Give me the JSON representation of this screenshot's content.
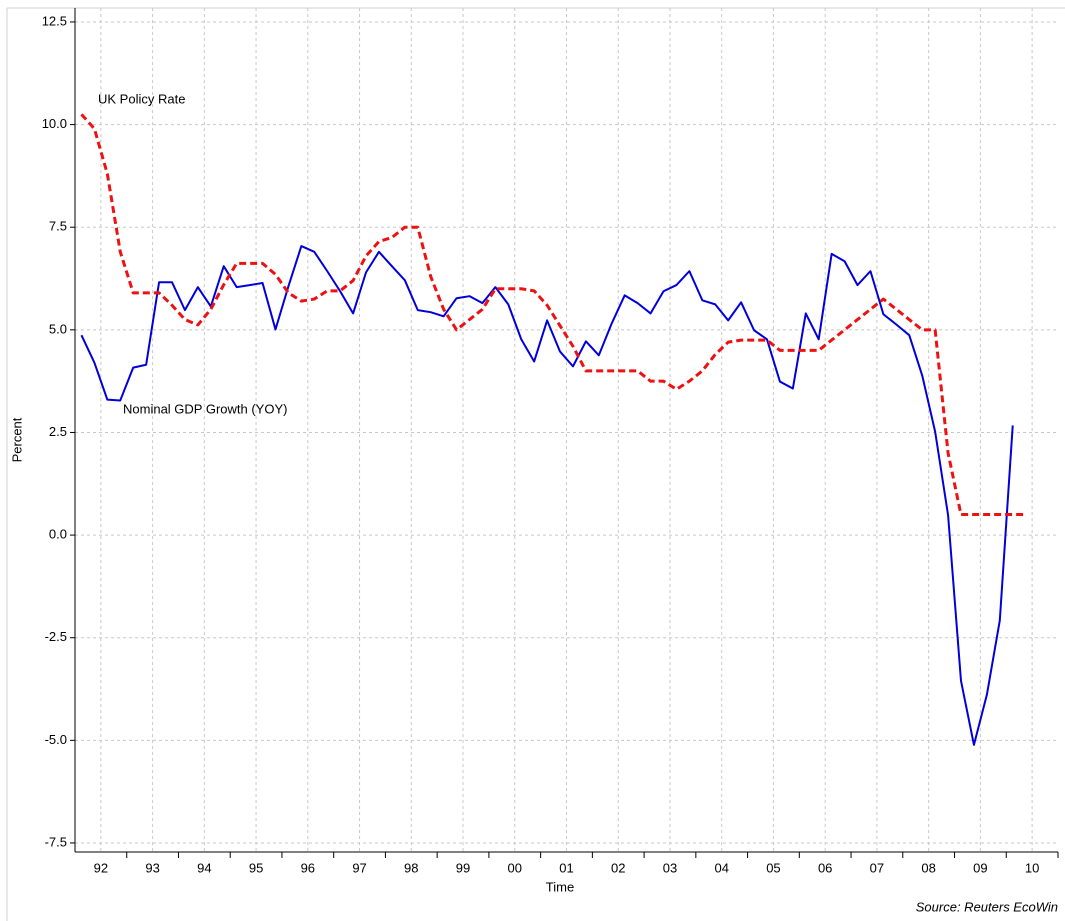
{
  "chart_data": {
    "type": "line",
    "y_label": "Percent",
    "x_label": "Time",
    "source": "Source: Reuters EcoWin",
    "annotations": [
      "UK Policy Rate",
      "Nominal GDP Growth (YOY)"
    ],
    "categories": [
      "92",
      "93",
      "94",
      "95",
      "96",
      "97",
      "98",
      "99",
      "00",
      "01",
      "02",
      "03",
      "04",
      "05",
      "06",
      "07",
      "08",
      "09",
      "10"
    ],
    "xlim": [
      1992,
      2011
    ],
    "ylim": [
      -7.72,
      12.84
    ],
    "yticks": [
      12.5,
      {
        "value": 10,
        "label": "10.0"
      },
      7.5,
      {
        "value": 5,
        "label": "5.0"
      },
      2.5,
      {
        "value": 0,
        "label": "0.0"
      },
      -2.5,
      {
        "value": -5,
        "label": "-5.0"
      },
      -7.5
    ],
    "grid": true,
    "x": [
      1992.125,
      1992.375,
      1992.625,
      1992.875,
      1993.125,
      1993.375,
      1993.625,
      1993.875,
      1994.125,
      1994.375,
      1994.625,
      1994.875,
      1995.125,
      1995.375,
      1995.625,
      1995.875,
      1996.125,
      1996.375,
      1996.625,
      1996.875,
      1997.125,
      1997.375,
      1997.625,
      1997.875,
      1998.125,
      1998.375,
      1998.625,
      1998.875,
      1999.125,
      1999.375,
      1999.625,
      1999.875,
      2000.125,
      2000.375,
      2000.625,
      2000.875,
      2001.125,
      2001.375,
      2001.625,
      2001.875,
      2002.125,
      2002.375,
      2002.625,
      2002.875,
      2003.125,
      2003.375,
      2003.625,
      2003.875,
      2004.125,
      2004.375,
      2004.625,
      2004.875,
      2005.125,
      2005.375,
      2005.625,
      2005.875,
      2006.125,
      2006.375,
      2006.625,
      2006.875,
      2007.125,
      2007.375,
      2007.625,
      2007.875,
      2008.125,
      2008.375,
      2008.625,
      2008.875,
      2009.125,
      2009.375,
      2009.625,
      2009.875,
      2010.125,
      2010.375
    ],
    "series": [
      {
        "name": "Nominal GDP Growth (YOY)",
        "color": "#0000dd",
        "dash": false,
        "values": [
          4.87,
          4.2,
          3.3,
          3.28,
          4.08,
          4.15,
          6.16,
          6.16,
          5.48,
          6.04,
          5.57,
          6.55,
          6.04,
          6.09,
          6.14,
          5.01,
          6.06,
          7.04,
          6.9,
          6.43,
          5.94,
          5.4,
          6.4,
          6.9,
          6.55,
          6.21,
          5.48,
          5.43,
          5.33,
          5.77,
          5.82,
          5.65,
          6.04,
          5.62,
          4.77,
          4.23,
          5.23,
          4.47,
          4.11,
          4.72,
          4.38,
          5.16,
          5.84,
          5.65,
          5.4,
          5.94,
          6.09,
          6.43,
          5.72,
          5.62,
          5.23,
          5.67,
          4.99,
          4.77,
          3.74,
          3.57,
          5.4,
          4.77,
          6.85,
          6.67,
          6.09,
          6.43,
          5.38,
          5.13,
          4.87,
          3.89,
          2.52,
          0.49,
          -3.55,
          -5.11,
          -3.89,
          -2.08,
          2.67,
          null
        ]
      },
      {
        "name": "UK Policy Rate",
        "color": "#ee1111",
        "dash": true,
        "values": [
          10.25,
          9.9,
          8.8,
          6.9,
          5.9,
          5.9,
          5.9,
          5.6,
          5.25,
          5.12,
          5.5,
          6.1,
          6.62,
          6.62,
          6.62,
          6.35,
          5.9,
          5.7,
          5.75,
          5.95,
          5.95,
          6.2,
          6.8,
          7.15,
          7.25,
          7.5,
          7.5,
          6.3,
          5.5,
          5.0,
          5.25,
          5.5,
          6.0,
          6.0,
          6.0,
          5.95,
          5.6,
          5.1,
          4.6,
          4.0,
          4.0,
          4.0,
          4.0,
          4.0,
          3.75,
          3.75,
          3.55,
          3.75,
          4.0,
          4.4,
          4.7,
          4.75,
          4.75,
          4.75,
          4.5,
          4.5,
          4.5,
          4.5,
          4.75,
          5.0,
          5.25,
          5.5,
          5.75,
          5.5,
          5.25,
          5.0,
          5.0,
          2.0,
          0.5,
          0.5,
          0.5,
          0.5,
          0.5,
          0.5
        ]
      }
    ]
  }
}
